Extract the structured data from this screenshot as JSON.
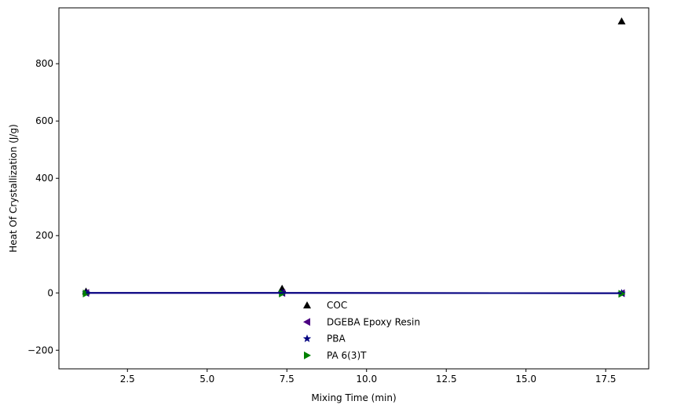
{
  "chart_data": {
    "type": "scatter",
    "title": "",
    "xlabel": "Mixing Time (min)",
    "ylabel": "Heat Of Crystallization (J/g)",
    "xlim": [
      0.35,
      18.85
    ],
    "ylim": [
      -265,
      995
    ],
    "xticks": [
      2.5,
      5.0,
      7.5,
      10.0,
      12.5,
      15.0,
      17.5
    ],
    "xtick_labels": [
      "2.5",
      "5.0",
      "7.5",
      "10.0",
      "12.5",
      "15.0",
      "17.5"
    ],
    "yticks": [
      -200,
      0,
      200,
      400,
      600,
      800
    ],
    "ytick_labels": [
      "−200",
      "0",
      "200",
      "400",
      "600",
      "800"
    ],
    "grid": false,
    "legend_position": "lower-center",
    "series": [
      {
        "name": "COC",
        "marker": "triangle-up",
        "color": "#000000",
        "x": [
          1.2,
          7.35,
          18.0
        ],
        "y": [
          5,
          15,
          948
        ]
      },
      {
        "name": "DGEBA Epoxy Resin",
        "marker": "triangle-left",
        "color": "#4b0082",
        "x": [
          1.2,
          7.35,
          18.0
        ],
        "y": [
          0,
          0,
          -1
        ]
      },
      {
        "name": "PBA",
        "marker": "star",
        "color": "#000080",
        "x": [
          1.2,
          7.35,
          18.0
        ],
        "y": [
          0,
          0,
          -1
        ]
      },
      {
        "name": "PA 6(3)T",
        "marker": "triangle-right",
        "color": "#008000",
        "x": [
          1.2,
          7.35,
          18.0
        ],
        "y": [
          -2,
          -2,
          -3
        ]
      }
    ],
    "lines": [
      {
        "color": "#4b0082",
        "x": [
          1.2,
          7.35,
          18.0
        ],
        "y": [
          0,
          0,
          -1
        ]
      },
      {
        "color": "#000080",
        "x": [
          1.2,
          7.35,
          18.0
        ],
        "y": [
          0,
          0,
          -1
        ]
      }
    ]
  }
}
